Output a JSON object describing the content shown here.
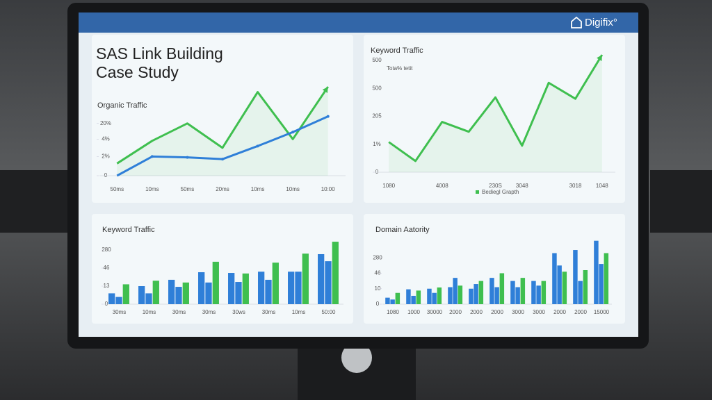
{
  "header": {
    "brand": "Digifix°"
  },
  "chart_data": [
    {
      "type": "line",
      "heading": [
        "SAS Link Building",
        "Case Study"
      ],
      "title": "Organic Traffic",
      "categories": [
        "50ms",
        "10ms",
        "50ms",
        "20ms",
        "10ms",
        "10ms",
        "10:00"
      ],
      "series": [
        {
          "color": "#3fbf4f",
          "values": [
            0.7,
            2.0,
            3.0,
            1.6,
            4.8,
            2.1,
            5.1
          ]
        },
        {
          "color": "#2f7fd8",
          "values": [
            0,
            1.1,
            1.05,
            0.95,
            1.7,
            2.5,
            3.4
          ]
        }
      ],
      "ylim": [
        0,
        5.3
      ],
      "yticks": [
        0,
        {
          "value": 1.1,
          "label": "2%"
        },
        {
          "value": 2.1,
          "label": "4%"
        },
        {
          "value": 3,
          "label": "20%"
        }
      ]
    },
    {
      "type": "line",
      "title": "Keyword Traffic",
      "subtitle": "Tota% tetit",
      "categories": [
        "1080",
        null,
        "4008",
        null,
        "230S",
        "3048",
        null,
        "3018",
        "1048"
      ],
      "series": [
        {
          "name": "Bediegl Grapth",
          "color": "#3fbf4f",
          "values": [
            1.08,
            0.4,
            1.8,
            1.45,
            2.68,
            0.95,
            3.2,
            2.63,
            4.2
          ]
        }
      ],
      "ylim": [
        0,
        4.3
      ],
      "yticks": [
        0,
        {
          "value": 1,
          "label": "1%"
        },
        {
          "value": 2,
          "label": "205"
        },
        {
          "value": 3,
          "label": "500"
        },
        {
          "value": 4,
          "label": "500"
        }
      ]
    },
    {
      "type": "bar",
      "title": "Keyword Traffic",
      "categories": [
        "30ms",
        "10ms",
        "30ms",
        "30ms",
        "30ws",
        "30ms",
        "10ms",
        "50:00"
      ],
      "series": [
        {
          "color": "#2f7fd8",
          "values": [
            0.6,
            1.0,
            1.35,
            1.77,
            1.73,
            1.8,
            1.8,
            2.77
          ]
        },
        {
          "color": "#2f7fd8",
          "values": [
            0.4,
            0.6,
            0.96,
            1.2,
            1.23,
            1.35,
            1.8,
            2.38
          ]
        },
        {
          "color": "#3fbf4f",
          "values": [
            1.1,
            1.3,
            1.2,
            2.35,
            1.7,
            2.3,
            2.8,
            3.46
          ]
        }
      ],
      "ylim": [
        0,
        3.77
      ],
      "yticks": [
        0,
        {
          "value": 1,
          "label": "13"
        },
        {
          "value": 2,
          "label": "46"
        },
        {
          "value": 3,
          "label": "280"
        }
      ]
    },
    {
      "type": "bar",
      "title": "Domain Aatority",
      "categories": [
        "1080",
        "1000",
        "30000",
        "2000",
        "2000",
        "2000",
        "3000",
        "3000",
        "2000",
        "2000",
        "15000"
      ],
      "series": [
        {
          "color": "#2f7fd8",
          "values": [
            0.42,
            0.96,
            1.0,
            1.1,
            1.0,
            1.7,
            1.5,
            1.5,
            3.3,
            3.5,
            4.1
          ]
        },
        {
          "color": "#2f7fd8",
          "values": [
            0.3,
            0.54,
            0.73,
            1.7,
            1.3,
            1.1,
            1.1,
            1.2,
            2.5,
            1.5,
            2.6
          ]
        },
        {
          "color": "#3fbf4f",
          "values": [
            0.73,
            0.88,
            1.08,
            1.2,
            1.5,
            2.0,
            1.7,
            1.5,
            2.1,
            2.2,
            3.3
          ]
        }
      ],
      "ylim": [
        0,
        4.4
      ],
      "yticks": [
        0,
        {
          "value": 1,
          "label": "10"
        },
        {
          "value": 2,
          "label": "46"
        },
        {
          "value": 3,
          "label": "280"
        }
      ]
    }
  ]
}
